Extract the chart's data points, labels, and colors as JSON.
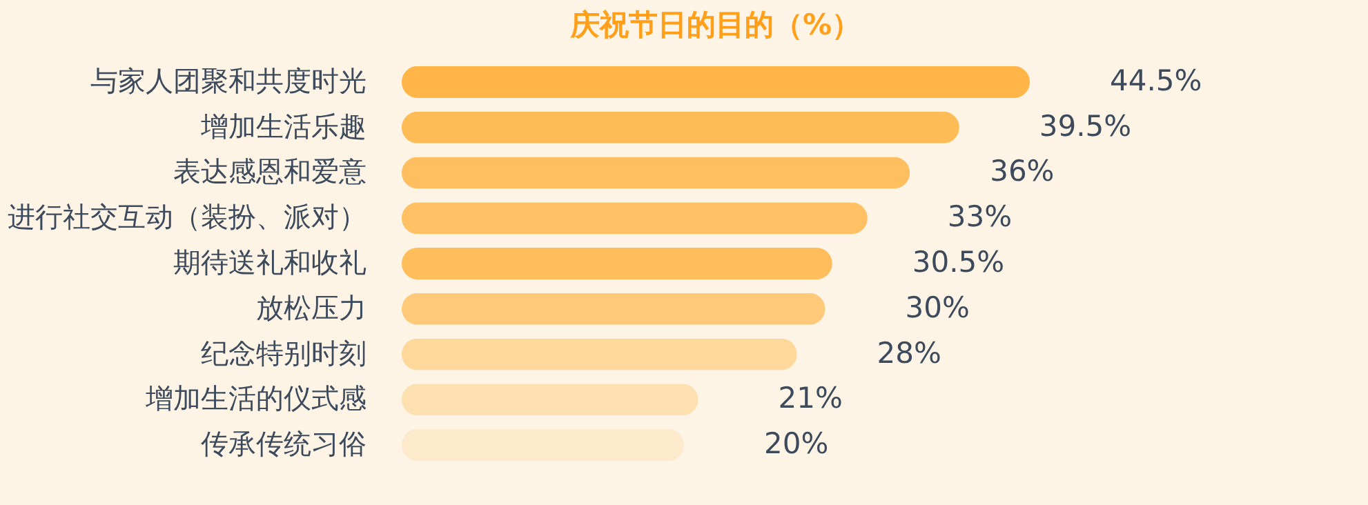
{
  "chart_data": {
    "type": "bar",
    "orientation": "horizontal",
    "title": "庆祝节日的目的（%）",
    "categories": [
      "与家人团聚和共度时光",
      "增加生活乐趣",
      "表达感恩和爱意",
      "进行社交互动（装扮、派对）",
      "期待送礼和收礼",
      "放松压力",
      "纪念特别时刻",
      "增加生活的仪式感",
      "传承传统习俗"
    ],
    "values": [
      44.5,
      39.5,
      36,
      33,
      30.5,
      30,
      28,
      21,
      20
    ],
    "colors": [
      "#ffb547",
      "#ffbb55",
      "#ffbf60",
      "#ffc164",
      "#ffbd5c",
      "#ffc97a",
      "#fed79b",
      "#fde0b0",
      "#fde9cc"
    ],
    "value_labels": [
      "44.5%",
      "39.5%",
      "36%",
      "33%",
      "30.5%",
      "30%",
      "28%",
      "21%",
      "20%"
    ]
  }
}
